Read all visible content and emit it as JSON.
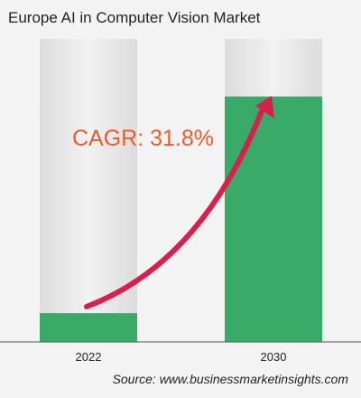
{
  "chart_data": {
    "type": "bar",
    "title": "Europe AI in Computer Vision Market",
    "categories": [
      "2022",
      "2030"
    ],
    "values": [
      0.095,
      0.81
    ],
    "value_note": "relative bar heights (fraction of full column); no axis values printed",
    "annotation": "CAGR: 31.8%",
    "source": "Source: www.businessmarketinsights.com",
    "grid": false,
    "legend": "none"
  },
  "colors": {
    "bar": "#3aaa68",
    "track": "#e4e4e4",
    "arrow": "#d81f4e",
    "cagr_text": "#ec5b2e",
    "background": "#f3f3f3"
  }
}
